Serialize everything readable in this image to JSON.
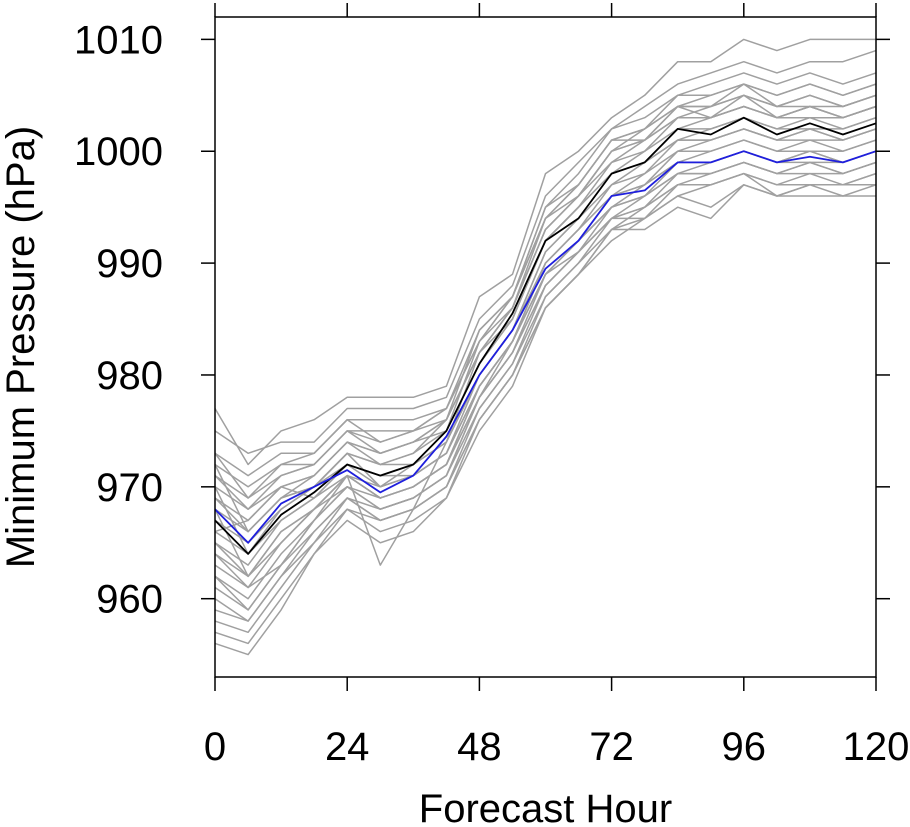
{
  "chart_data": {
    "type": "line",
    "title": "",
    "xlabel": "Forecast Hour",
    "ylabel": "Minimum Pressure (hPa)",
    "xlim": [
      0,
      120
    ],
    "ylim": [
      953,
      1012
    ],
    "xticks": [
      0,
      24,
      48,
      72,
      96,
      120
    ],
    "yticks": [
      960,
      970,
      980,
      990,
      1000,
      1010
    ],
    "grid": false,
    "legend": "none",
    "x": [
      0,
      6,
      12,
      18,
      24,
      30,
      36,
      42,
      48,
      54,
      60,
      66,
      72,
      78,
      84,
      90,
      96,
      102,
      108,
      114,
      120
    ],
    "highlight_series": [
      {
        "color": "#000000",
        "values": [
          967,
          964,
          967.5,
          969.5,
          972,
          971,
          972,
          975,
          981,
          985.5,
          992,
          994,
          998,
          999,
          1002,
          1001.5,
          1003,
          1001.5,
          1002.5,
          1001.5,
          1002.5
        ]
      },
      {
        "color": "#1f1fdd",
        "values": [
          968,
          965,
          968.5,
          970,
          971.5,
          969.5,
          971,
          974.5,
          980,
          984,
          989.5,
          992,
          996,
          996.5,
          999,
          999,
          1000,
          999,
          999.5,
          999,
          1000
        ]
      }
    ],
    "ensemble_color": "#a0a0a0",
    "ensemble_series": [
      {
        "values": [
          977,
          972,
          975,
          976,
          978,
          978,
          978,
          979,
          987,
          989,
          998,
          1000,
          1003,
          1005,
          1008,
          1008,
          1010,
          1009,
          1010,
          1010,
          1010
        ]
      },
      {
        "values": [
          975,
          973,
          974,
          974,
          977,
          977,
          977,
          978,
          985,
          988,
          996,
          999,
          1002,
          1004,
          1006,
          1007,
          1008,
          1007,
          1008,
          1008,
          1009
        ]
      },
      {
        "values": [
          973,
          971,
          973,
          973,
          976,
          976,
          976,
          977,
          984,
          987,
          995,
          998,
          1002,
          1003,
          1005,
          1006,
          1007,
          1006,
          1007,
          1006,
          1007
        ]
      },
      {
        "values": [
          972,
          970,
          972,
          972,
          975,
          975,
          975,
          977,
          983,
          987,
          994,
          997,
          1001,
          1002,
          1005,
          1005,
          1006,
          1005,
          1006,
          1005,
          1006
        ]
      },
      {
        "values": [
          971,
          969,
          971,
          972,
          975,
          974,
          975,
          976,
          982,
          986,
          993,
          996,
          1000,
          1002,
          1004,
          1004,
          1005,
          1004,
          1005,
          1004,
          1005
        ]
      },
      {
        "values": [
          970,
          968,
          970,
          971,
          974,
          973,
          974,
          976,
          982,
          986,
          993,
          996,
          999,
          1001,
          1003,
          1004,
          1005,
          1004,
          1004,
          1004,
          1005
        ]
      },
      {
        "values": [
          969,
          967,
          970,
          971,
          974,
          973,
          974,
          975,
          981,
          985,
          992,
          995,
          999,
          1000,
          1003,
          1003,
          1004,
          1003,
          1004,
          1003,
          1004
        ]
      },
      {
        "values": [
          968,
          966,
          969,
          970,
          973,
          972,
          973,
          975,
          981,
          985,
          992,
          995,
          998,
          1000,
          1002,
          1003,
          1004,
          1003,
          1003,
          1003,
          1004
        ]
      },
      {
        "values": [
          967,
          965,
          968,
          970,
          973,
          972,
          972,
          974,
          980,
          984,
          991,
          994,
          998,
          999,
          1002,
          1002,
          1003,
          1002,
          1003,
          1002,
          1003
        ]
      },
      {
        "values": [
          966,
          964,
          967,
          969,
          972,
          971,
          972,
          974,
          980,
          984,
          991,
          994,
          997,
          999,
          1001,
          1002,
          1003,
          1002,
          1002,
          1002,
          1003
        ]
      },
      {
        "values": [
          965,
          963,
          967,
          969,
          972,
          970,
          971,
          973,
          980,
          984,
          990,
          993,
          997,
          998,
          1001,
          1001,
          1002,
          1001,
          1002,
          1001,
          1002
        ]
      },
      {
        "values": [
          964,
          962,
          966,
          968,
          971,
          970,
          971,
          973,
          979,
          983,
          990,
          993,
          996,
          998,
          1000,
          1001,
          1002,
          1001,
          1001,
          1001,
          1002
        ]
      },
      {
        "values": [
          963,
          961,
          965,
          968,
          971,
          969,
          970,
          972,
          979,
          983,
          989,
          992,
          996,
          997,
          1000,
          1000,
          1001,
          1000,
          1001,
          1000,
          1001
        ]
      },
      {
        "values": [
          962,
          960,
          964,
          967,
          970,
          969,
          970,
          972,
          978,
          982,
          989,
          992,
          995,
          997,
          999,
          1000,
          1001,
          1000,
          1000,
          1000,
          1001
        ]
      },
      {
        "values": [
          961,
          959,
          963,
          967,
          970,
          968,
          969,
          971,
          978,
          982,
          988,
          991,
          995,
          996,
          999,
          999,
          1000,
          999,
          1000,
          999,
          1000
        ]
      },
      {
        "values": [
          960,
          958,
          962,
          966,
          969,
          968,
          969,
          971,
          977,
          981,
          988,
          991,
          994,
          996,
          998,
          999,
          1000,
          999,
          999,
          999,
          1000
        ]
      },
      {
        "values": [
          959,
          958,
          962,
          965,
          969,
          967,
          968,
          970,
          977,
          981,
          987,
          990,
          994,
          995,
          998,
          998,
          999,
          998,
          999,
          998,
          999
        ]
      },
      {
        "values": [
          958,
          957,
          961,
          965,
          968,
          967,
          968,
          970,
          976,
          980,
          987,
          990,
          993,
          995,
          997,
          998,
          999,
          998,
          998,
          998,
          999
        ]
      },
      {
        "values": [
          957,
          956,
          960,
          964,
          968,
          966,
          967,
          969,
          976,
          980,
          986,
          989,
          993,
          994,
          997,
          997,
          998,
          997,
          998,
          997,
          998
        ]
      },
      {
        "values": [
          956,
          955,
          959,
          964,
          967,
          965,
          966,
          969,
          975,
          979,
          986,
          989,
          992,
          994,
          996,
          997,
          998,
          997,
          997,
          997,
          998
        ]
      },
      {
        "values": [
          970,
          964,
          968,
          970,
          973,
          970,
          972,
          975,
          983,
          986,
          994,
          996,
          1000,
          1001,
          1004,
          1003,
          1005,
          1003,
          1004,
          1003,
          1004
        ]
      },
      {
        "values": [
          972,
          966,
          969,
          971,
          974,
          972,
          973,
          976,
          984,
          987,
          995,
          997,
          1001,
          1001,
          1004,
          1004,
          1006,
          1004,
          1005,
          1004,
          1005
        ]
      },
      {
        "values": [
          966,
          967,
          970,
          969,
          971,
          963,
          968,
          974,
          982,
          985,
          992,
          995,
          998,
          999,
          1001,
          1001,
          1002,
          1001,
          1002,
          1001,
          1002
        ]
      },
      {
        "values": [
          964,
          961,
          963,
          967,
          971,
          969,
          970,
          972,
          978,
          983,
          990,
          993,
          996,
          997,
          999,
          999,
          1000,
          999,
          1000,
          999,
          1000
        ]
      },
      {
        "values": [
          968,
          962,
          965,
          968,
          970,
          968,
          969,
          971,
          978,
          982,
          988,
          991,
          994,
          995,
          997,
          997,
          998,
          996,
          997,
          997,
          997
        ]
      },
      {
        "values": [
          971,
          968,
          971,
          972,
          975,
          973,
          974,
          976,
          982,
          986,
          993,
          996,
          1000,
          1001,
          1003,
          1003,
          1004,
          1003,
          1004,
          1003,
          1004
        ]
      },
      {
        "values": [
          969,
          966,
          969,
          970,
          972,
          971,
          971,
          973,
          979,
          983,
          989,
          991,
          994,
          994,
          996,
          995,
          997,
          996,
          996,
          996,
          996
        ]
      },
      {
        "values": [
          973,
          969,
          972,
          973,
          976,
          974,
          975,
          977,
          983,
          987,
          994,
          997,
          1001,
          1002,
          1004,
          1005,
          1006,
          1005,
          1006,
          1005,
          1006
        ]
      },
      {
        "values": [
          962,
          959,
          963,
          966,
          969,
          967,
          968,
          970,
          976,
          980,
          986,
          989,
          993,
          993,
          995,
          994,
          997,
          996,
          997,
          996,
          997
        ]
      },
      {
        "values": [
          965,
          962,
          966,
          968,
          971,
          969,
          970,
          972,
          979,
          983,
          989,
          992,
          995,
          996,
          998,
          998,
          999,
          998,
          999,
          998,
          999
        ]
      }
    ]
  }
}
